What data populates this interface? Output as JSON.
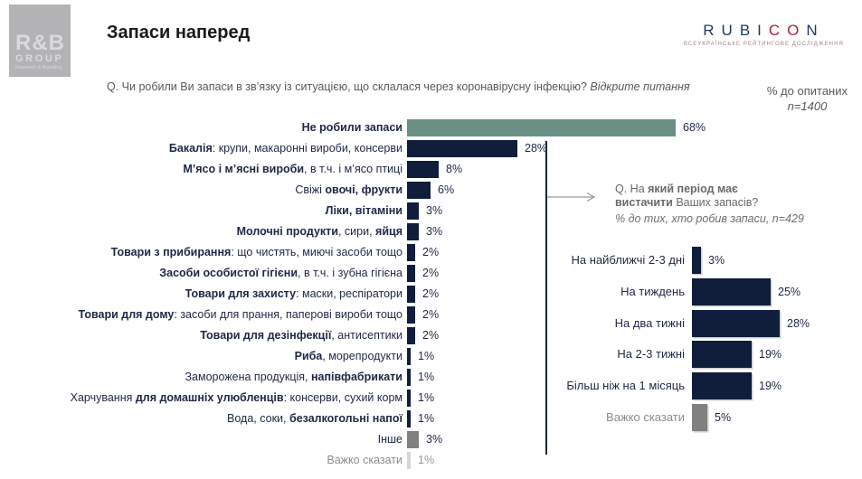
{
  "colors": {
    "navy": "#101e3c",
    "sage": "#6a9086",
    "gray_bar": "#808080",
    "light_gray_bar": "#d6d6d6",
    "text_dark": "#1e2745",
    "text_gray": "#8c8c8c",
    "question_gray": "#595959",
    "rubicon_navy": "#1e3a5f",
    "rubicon_red": "#b01f35",
    "logo_bg": "#b3b3b6",
    "divider_line": "#1b2335",
    "arrow_gray": "#808080"
  },
  "logo": {
    "line1": "R&B",
    "line2": "GROUP",
    "line3": "Research & Branding"
  },
  "header": {
    "title": "Запаси наперед"
  },
  "brand": {
    "letters": [
      {
        "ch": "R",
        "red": false
      },
      {
        "ch": "U",
        "red": false
      },
      {
        "ch": "B",
        "red": false
      },
      {
        "ch": "I",
        "red": false
      },
      {
        "ch": "C",
        "red": true
      },
      {
        "ch": "O",
        "red": true
      },
      {
        "ch": "N",
        "red": false
      }
    ],
    "tagline": "ВСЕУКРАЇНСЬКЕ РЕЙТИНГОВЕ ДОСЛІДЖЕННЯ"
  },
  "question": {
    "text": "Q. Чи робили Ви запаси в зв’язку із ситуацією, що склалася через коронавірусну інфекцію?",
    "note": "Відкрите питання"
  },
  "meta": {
    "line1": "% до опитаних",
    "line2": "n=1400"
  },
  "sub": {
    "question_line1": [
      {
        "t": "Q. На ",
        "b": false
      },
      {
        "t": "який період має",
        "b": true
      }
    ],
    "question_line2": [
      {
        "t": "вистачити",
        "b": true
      },
      {
        "t": " Ваших запасів?",
        "b": false
      }
    ],
    "note": "% до тих, хто робив запаси, n=429"
  },
  "chart_data": [
    {
      "type": "bar",
      "orientation": "horizontal",
      "title": "Запаси наперед",
      "subtitle": "% до опитаних, n=1400",
      "unit": "%",
      "xlim": [
        0,
        70
      ],
      "grid": false,
      "categories": [
        "Не робили запаси",
        "Бакалія: крупи, макаронні вироби, консерви",
        "М’ясо і м’ясні вироби, в т.ч. і м’ясо птиці",
        "Свіжі овочі, фрукти",
        "Ліки, вітаміни",
        "Молочні продукти, сири, яйця",
        "Товари з прибирання: що чистять, миючі засоби тощо",
        "Засоби особистої гігієни, в т.ч. і зубна гігієна",
        "Товари для захисту: маски, респіратори",
        "Товари для дому: засоби для прання, паперові вироби тощо",
        "Товари для дезінфекції, антисептики",
        "Риба, морепродукти",
        "Заморожена продукція, напівфабрикати",
        "Харчування для домашніх улюбленців: консерви, сухий корм",
        "Вода, соки, безалкогольні напої",
        "Інше",
        "Важко сказати"
      ],
      "values": [
        68,
        28,
        8,
        6,
        3,
        3,
        2,
        2,
        2,
        2,
        2,
        1,
        1,
        1,
        1,
        3,
        1
      ],
      "rows": [
        {
          "segments": [
            {
              "t": "Не робили запаси",
              "b": true
            }
          ],
          "value": 68,
          "bar": "sage"
        },
        {
          "segments": [
            {
              "t": "Бакалія",
              "b": true
            },
            {
              "t": ": крупи, макаронні вироби, консерви",
              "b": false
            }
          ],
          "value": 28,
          "bar": "navy"
        },
        {
          "segments": [
            {
              "t": "М’ясо і м’ясні вироби",
              "b": true
            },
            {
              "t": ", в т.ч. і м’ясо птиці",
              "b": false
            }
          ],
          "value": 8,
          "bar": "navy"
        },
        {
          "segments": [
            {
              "t": "Свіжі ",
              "b": false
            },
            {
              "t": "овочі, фрукти",
              "b": true
            }
          ],
          "value": 6,
          "bar": "navy"
        },
        {
          "segments": [
            {
              "t": "Ліки, вітаміни",
              "b": true
            }
          ],
          "value": 3,
          "bar": "navy"
        },
        {
          "segments": [
            {
              "t": "Молочні продукти",
              "b": true
            },
            {
              "t": ", сири, ",
              "b": false
            },
            {
              "t": "яйця",
              "b": true
            }
          ],
          "value": 3,
          "bar": "navy"
        },
        {
          "segments": [
            {
              "t": "Товари з прибирання",
              "b": true
            },
            {
              "t": ": що чистять, миючі засоби тощо",
              "b": false
            }
          ],
          "value": 2,
          "bar": "navy"
        },
        {
          "segments": [
            {
              "t": "Засоби особистої гігієни",
              "b": true
            },
            {
              "t": ", в т.ч. і зубна гігієна",
              "b": false
            }
          ],
          "value": 2,
          "bar": "navy"
        },
        {
          "segments": [
            {
              "t": "Товари для захисту",
              "b": true
            },
            {
              "t": ": маски, респіратори",
              "b": false
            }
          ],
          "value": 2,
          "bar": "navy"
        },
        {
          "segments": [
            {
              "t": "Товари для дому",
              "b": true
            },
            {
              "t": ": засоби для прання, паперові вироби тощо",
              "b": false
            }
          ],
          "value": 2,
          "bar": "navy"
        },
        {
          "segments": [
            {
              "t": "Товари для дезінфекції",
              "b": true
            },
            {
              "t": ", антисептики",
              "b": false
            }
          ],
          "value": 2,
          "bar": "navy"
        },
        {
          "segments": [
            {
              "t": "Риба",
              "b": true
            },
            {
              "t": ", морепродукти",
              "b": false
            }
          ],
          "value": 1,
          "bar": "navy"
        },
        {
          "segments": [
            {
              "t": "Заморожена продукція, ",
              "b": false
            },
            {
              "t": "напівфабрикати",
              "b": true
            }
          ],
          "value": 1,
          "bar": "navy"
        },
        {
          "segments": [
            {
              "t": "Харчування ",
              "b": false
            },
            {
              "t": "для домашніх улюбленців",
              "b": true
            },
            {
              "t": ": консерви, сухий корм",
              "b": false
            }
          ],
          "value": 1,
          "bar": "navy"
        },
        {
          "segments": [
            {
              "t": "Вода, соки, ",
              "b": false
            },
            {
              "t": "безалкогольні напої",
              "b": true
            }
          ],
          "value": 1,
          "bar": "navy"
        },
        {
          "segments": [
            {
              "t": "Інше",
              "b": false
            }
          ],
          "value": 3,
          "bar": "gray"
        },
        {
          "segments": [
            {
              "t": "Важко сказати",
              "b": false
            }
          ],
          "value": 1,
          "bar": "light",
          "muted": true,
          "value_muted": true
        }
      ]
    },
    {
      "type": "bar",
      "orientation": "horizontal",
      "title": "Q. На який період має вистачити Ваших запасів?",
      "subtitle": "% до тих, хто робив запаси, n=429",
      "unit": "%",
      "xlim": [
        0,
        30
      ],
      "grid": false,
      "categories": [
        "На найближчі 2-3 дні",
        "На тиждень",
        "На два тижні",
        "На 2-3 тижні",
        "Більш ніж на 1 місяць",
        "Важко сказати"
      ],
      "values": [
        3,
        25,
        28,
        19,
        19,
        5
      ],
      "rows": [
        {
          "segments": [
            {
              "t": "На найближчі 2-3 дні",
              "b": false
            }
          ],
          "value": 3,
          "bar": "navy"
        },
        {
          "segments": [
            {
              "t": "На тиждень",
              "b": false
            }
          ],
          "value": 25,
          "bar": "navy"
        },
        {
          "segments": [
            {
              "t": "На два тижні",
              "b": false
            }
          ],
          "value": 28,
          "bar": "navy"
        },
        {
          "segments": [
            {
              "t": "На 2-3 тижні",
              "b": false
            }
          ],
          "value": 19,
          "bar": "navy"
        },
        {
          "segments": [
            {
              "t": "Більш ніж на 1 місяць",
              "b": false
            }
          ],
          "value": 19,
          "bar": "navy"
        },
        {
          "segments": [
            {
              "t": "Важко сказати",
              "b": false
            }
          ],
          "value": 5,
          "bar": "gray",
          "muted": true
        }
      ]
    }
  ]
}
